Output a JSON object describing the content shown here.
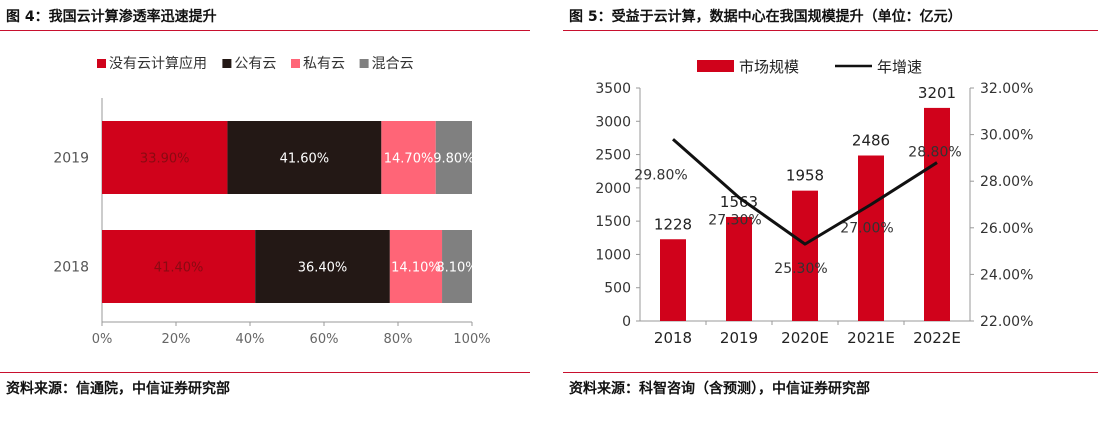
{
  "left": {
    "title": "图 4：我国云计算渗透率迅速提升",
    "source": "资料来源：信通院，中信证券研究部"
  },
  "right": {
    "title": "图 5：受益于云计算，数据中心在我国规模提升（单位：亿元）",
    "source": "资料来源：科智咨询（含预测），中信证券研究部"
  },
  "chart_data": [
    {
      "type": "bar",
      "orientation": "horizontal",
      "stacked": true,
      "categories": [
        "2019",
        "2018"
      ],
      "series": [
        {
          "name": "没有云计算应用",
          "values": [
            33.9,
            41.4
          ],
          "labels": [
            "33.90%",
            "41.40%"
          ],
          "color": "#d0021b"
        },
        {
          "name": "公有云",
          "values": [
            41.6,
            36.4
          ],
          "labels": [
            "41.60%",
            "36.40%"
          ],
          "color": "#231815"
        },
        {
          "name": "私有云",
          "values": [
            14.7,
            14.1
          ],
          "labels": [
            "14.70%",
            "14.10%"
          ],
          "color": "#ff6577"
        },
        {
          "name": "混合云",
          "values": [
            9.8,
            8.1
          ],
          "labels": [
            "9.80%",
            "8.10%"
          ],
          "color": "#808080"
        }
      ],
      "x_ticks": [
        "0%",
        "20%",
        "40%",
        "60%",
        "80%",
        "100%"
      ],
      "xlim": [
        0,
        100
      ],
      "legend_position": "top",
      "grid": false
    },
    {
      "type": "bar+line",
      "categories": [
        "2018",
        "2019",
        "2020E",
        "2021E",
        "2022E"
      ],
      "bar_series": {
        "name": "市场规模",
        "values": [
          1228,
          1563,
          1958,
          2486,
          3201
        ],
        "color": "#d0021b"
      },
      "line_series": {
        "name": "年增速",
        "values": [
          29.8,
          27.3,
          25.3,
          27.0,
          28.8
        ],
        "labels": [
          "29.80%",
          "27.30%",
          "25.30%",
          "27.00%",
          "28.80%"
        ],
        "color": "#111111"
      },
      "y_left_ticks": [
        "0",
        "500",
        "1000",
        "1500",
        "2000",
        "2500",
        "3000",
        "3500"
      ],
      "y_left_lim": [
        0,
        3500
      ],
      "y_right_ticks": [
        "22.00%",
        "24.00%",
        "26.00%",
        "28.00%",
        "30.00%",
        "32.00%"
      ],
      "y_right_lim": [
        22,
        32
      ],
      "legend_position": "top",
      "grid": false
    }
  ]
}
